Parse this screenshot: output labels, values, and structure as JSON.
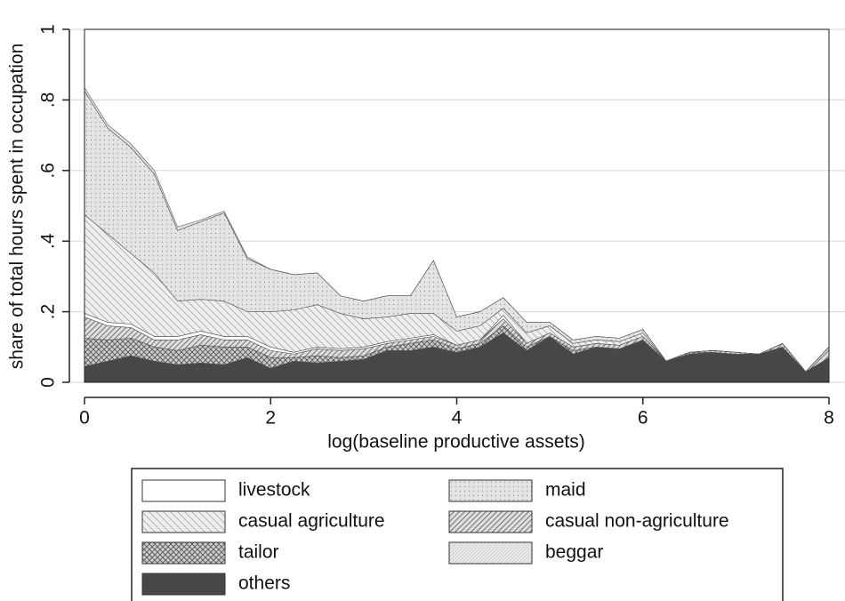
{
  "chart_data": {
    "type": "stacked_area",
    "x_label": "log(baseline productive assets)",
    "y_label": "share of total hours spent in occupation",
    "x": [
      0,
      0.25,
      0.5,
      0.75,
      1,
      1.25,
      1.5,
      1.75,
      2,
      2.25,
      2.5,
      2.75,
      3,
      3.25,
      3.5,
      3.75,
      4,
      4.25,
      4.5,
      4.75,
      5,
      5.25,
      5.5,
      5.75,
      6,
      6.25,
      6.5,
      6.75,
      7,
      7.25,
      7.5,
      7.75,
      8
    ],
    "xlim": [
      0,
      8
    ],
    "xticks": [
      0,
      2,
      4,
      6,
      8
    ],
    "ylim": [
      0,
      1
    ],
    "yticks": [
      0,
      {
        "value": 0.2,
        "label": ".2"
      },
      {
        "value": 0.4,
        "label": ".4"
      },
      {
        "value": 0.6,
        "label": ".6"
      },
      {
        "value": 0.8,
        "label": ".8"
      },
      1
    ],
    "grid": true,
    "stack_order": [
      6,
      4,
      3,
      0,
      2,
      1,
      5
    ],
    "series": [
      {
        "name": "livestock",
        "color": "#ffffff",
        "pattern": "none",
        "values": [
          0.01,
          0.01,
          0.01,
          0.01,
          0.01,
          0.01,
          0.01,
          0.01,
          0.01,
          0.005,
          0.005,
          0.005,
          0.005,
          0.005,
          0.005,
          0.005,
          0,
          0,
          0.01,
          0,
          0,
          0,
          0,
          0,
          0,
          0,
          0,
          0,
          0,
          0,
          0,
          0,
          0
        ]
      },
      {
        "name": "maid",
        "color": "#e4e4e4",
        "pattern": "dots",
        "values": [
          0.35,
          0.3,
          0.3,
          0.28,
          0.2,
          0.22,
          0.25,
          0.15,
          0.12,
          0.1,
          0.09,
          0.05,
          0.05,
          0.06,
          0.05,
          0.15,
          0.04,
          0.04,
          0.03,
          0.03,
          0.01,
          0.01,
          0.01,
          0.01,
          0.01,
          0,
          0,
          0,
          0,
          0,
          0,
          0,
          0
        ]
      },
      {
        "name": "casual agriculture",
        "color": "#eeeeee",
        "pattern": "backslash",
        "values": [
          0.28,
          0.25,
          0.2,
          0.18,
          0.1,
          0.09,
          0.1,
          0.07,
          0.1,
          0.12,
          0.12,
          0.1,
          0.08,
          0.07,
          0.07,
          0.06,
          0.04,
          0.04,
          0.02,
          0.03,
          0.02,
          0.01,
          0.01,
          0.01,
          0.01,
          0,
          0,
          0,
          0,
          0,
          0,
          0,
          0
        ]
      },
      {
        "name": "casual non-agriculture",
        "color": "#dddddd",
        "pattern": "slash",
        "values": [
          0.06,
          0.04,
          0.03,
          0.02,
          0.03,
          0.03,
          0.02,
          0.02,
          0.02,
          0.01,
          0.02,
          0.02,
          0.02,
          0.01,
          0.01,
          0.01,
          0.01,
          0.01,
          0.02,
          0.01,
          0.01,
          0.01,
          0.01,
          0.01,
          0.01,
          0,
          0,
          0.005,
          0.005,
          0,
          0.01,
          0,
          0.03
        ]
      },
      {
        "name": "tailor",
        "color": "#cccccc",
        "pattern": "crosshatch",
        "values": [
          0.08,
          0.06,
          0.05,
          0.04,
          0.04,
          0.05,
          0.05,
          0.03,
          0.03,
          0.01,
          0.02,
          0.01,
          0.01,
          0.01,
          0.02,
          0.02,
          0.01,
          0.01,
          0.02,
          0.01,
          0,
          0.01,
          0,
          0,
          0,
          0,
          0.005,
          0,
          0,
          0,
          0,
          0,
          0
        ]
      },
      {
        "name": "beggar",
        "color": "#eaeaea",
        "pattern": "fine",
        "values": [
          0.01,
          0.01,
          0.01,
          0.01,
          0.01,
          0.005,
          0.005,
          0.005,
          0,
          0,
          0,
          0,
          0,
          0,
          0,
          0,
          0,
          0,
          0,
          0,
          0,
          0,
          0,
          0,
          0,
          0,
          0,
          0,
          0,
          0,
          0,
          0,
          0
        ]
      },
      {
        "name": "others",
        "color": "#474747",
        "pattern": "solid",
        "values": [
          0.045,
          0.06,
          0.075,
          0.06,
          0.05,
          0.055,
          0.05,
          0.07,
          0.04,
          0.06,
          0.055,
          0.06,
          0.065,
          0.09,
          0.09,
          0.1,
          0.085,
          0.1,
          0.14,
          0.09,
          0.13,
          0.08,
          0.1,
          0.095,
          0.12,
          0.06,
          0.08,
          0.085,
          0.08,
          0.08,
          0.1,
          0.03,
          0.07
        ]
      }
    ]
  }
}
